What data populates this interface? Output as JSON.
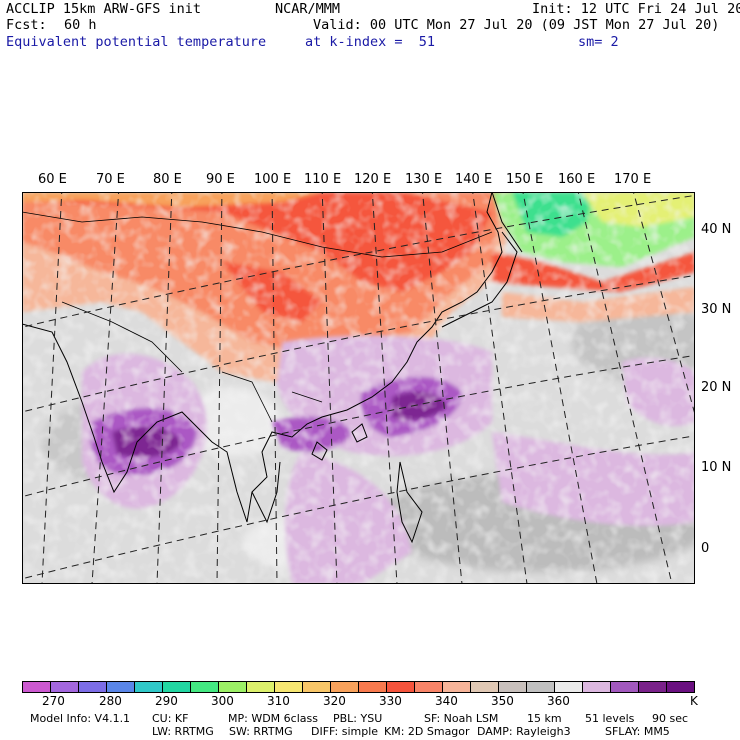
{
  "header": {
    "model_line": "ACCLIP 15km ARW-GFS init",
    "center": "NCAR/MMM",
    "init": "Init: 12 UTC Fri 24 Jul 20",
    "fcst_label": "Fcst:",
    "fcst_value": "60 h",
    "valid": "Valid: 00 UTC Mon 27 Jul 20 (09 JST Mon 27 Jul 20)",
    "field": "Equivalent potential temperature",
    "level": "at k-index =  51",
    "smooth": "sm= 2"
  },
  "map": {
    "lon_labels": [
      "60 E",
      "70 E",
      "80 E",
      "90 E",
      "100 E",
      "110 E",
      "120 E",
      "130 E",
      "140 E",
      "150 E",
      "160 E",
      "170 E"
    ],
    "lat_labels": [
      "40 N",
      "30 N",
      "20 N",
      "10 N",
      "0"
    ],
    "colors": {
      "ocean": "#dcdcdc",
      "hot": "#f5563c",
      "warm": "#f88a66",
      "tan": "#f6b79a",
      "cool": "#9cf08a",
      "green": "#3ee08e",
      "yellow": "#e4f075",
      "lilac": "#dcb8e0",
      "violet": "#ab59c4",
      "purple": "#7d2692",
      "gray": "#bcbcbc",
      "light": "#ececec"
    }
  },
  "colorbar": {
    "colors": [
      "#cc59d0",
      "#a367de",
      "#7c6de6",
      "#5a86e8",
      "#30c8c8",
      "#22d6a2",
      "#44e882",
      "#9cf066",
      "#dcf06c",
      "#f6e672",
      "#f8c668",
      "#f8a25c",
      "#f87a4e",
      "#f5543c",
      "#f88468",
      "#f6b499",
      "#e0c8b4",
      "#c8c0bc",
      "#c0c0c0",
      "#eaeaea",
      "#dcb8e0",
      "#a259be",
      "#7a228a",
      "#6a1080"
    ],
    "ticks": [
      "270",
      "280",
      "290",
      "300",
      "310",
      "320",
      "330",
      "340",
      "350",
      "360"
    ],
    "unit": "K"
  },
  "footer": {
    "line1": [
      "Model Info: V4.1.1",
      "CU: KF",
      "MP: WDM 6class",
      "PBL: YSU",
      "SF: Noah LSM",
      "15 km",
      "51 levels",
      "90 sec"
    ],
    "line2": [
      "LW: RRTMG",
      "SW: RRTMG",
      "DIFF: simple",
      "KM: 2D Smagor",
      "DAMP: Rayleigh3",
      "SFLAY: MM5"
    ]
  }
}
